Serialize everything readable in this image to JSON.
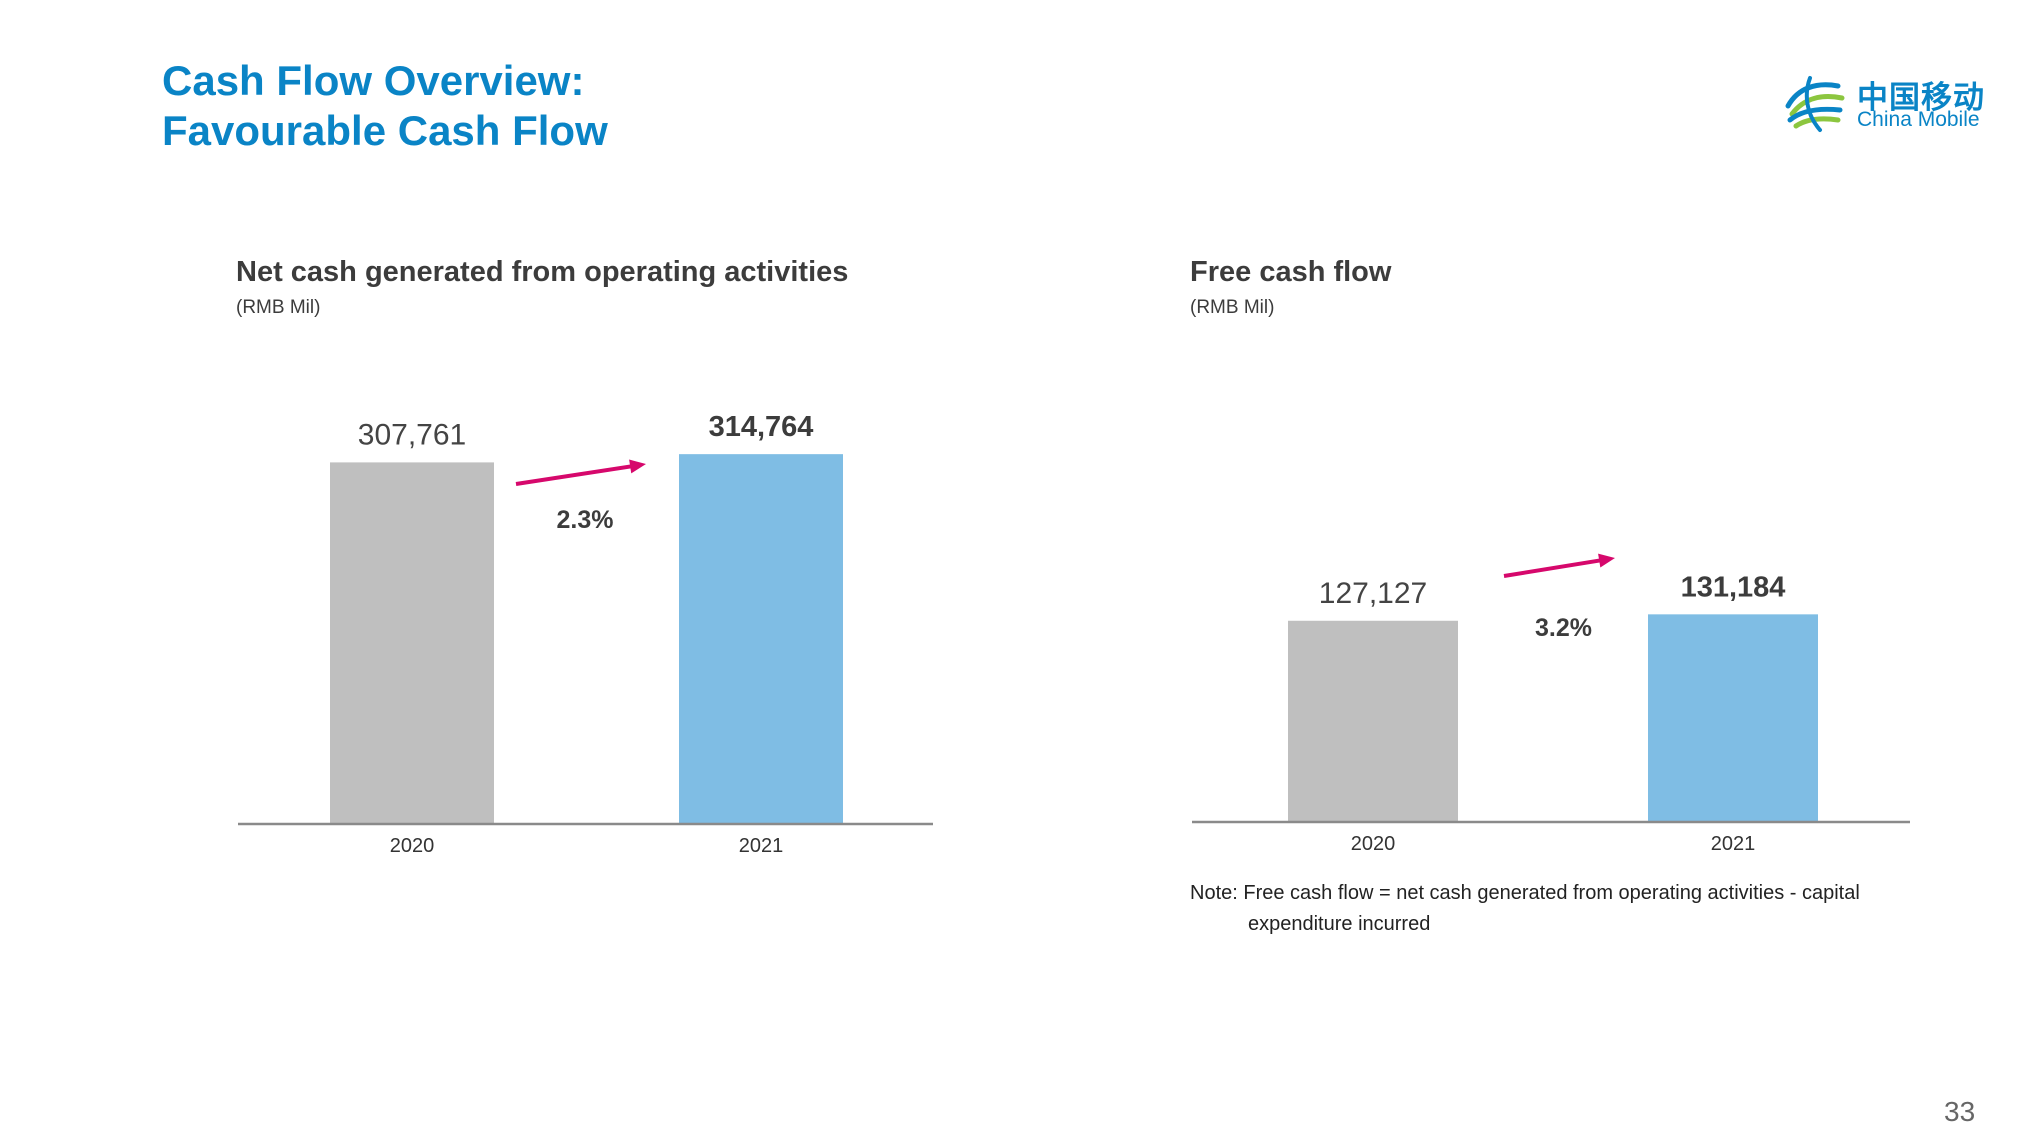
{
  "slide": {
    "title_line1": "Cash Flow Overview:",
    "title_line2": "Favourable Cash Flow",
    "page_number": "33",
    "note_line1": "Note: Free cash flow = net cash generated from operating activities - capital",
    "note_line2": "expenditure incurred"
  },
  "logo": {
    "name_cn": "中国移动",
    "name_en": "China Mobile",
    "brand_color": "#0a84c6",
    "icon": "china-mobile-logo-icon"
  },
  "colors": {
    "bar_prior": "#bfbfbf",
    "bar_current": "#7fbde4",
    "growth_arrow": "#d6086c",
    "title": "#0a84c6"
  },
  "chart_data": [
    {
      "type": "bar",
      "title": "Net cash generated from operating activities",
      "unit": "(RMB Mil)",
      "categories": [
        "2020",
        "2021"
      ],
      "values": [
        307761,
        314764
      ],
      "value_labels": [
        "307,761",
        "314,764"
      ],
      "growth_label": "2.3%",
      "ylim": [
        0,
        320000
      ]
    },
    {
      "type": "bar",
      "title": "Free cash flow",
      "unit": "(RMB Mil)",
      "categories": [
        "2020",
        "2021"
      ],
      "values": [
        127127,
        131184
      ],
      "value_labels": [
        "127,127",
        "131,184"
      ],
      "growth_label": "3.2%",
      "ylim": [
        0,
        235000
      ]
    }
  ]
}
